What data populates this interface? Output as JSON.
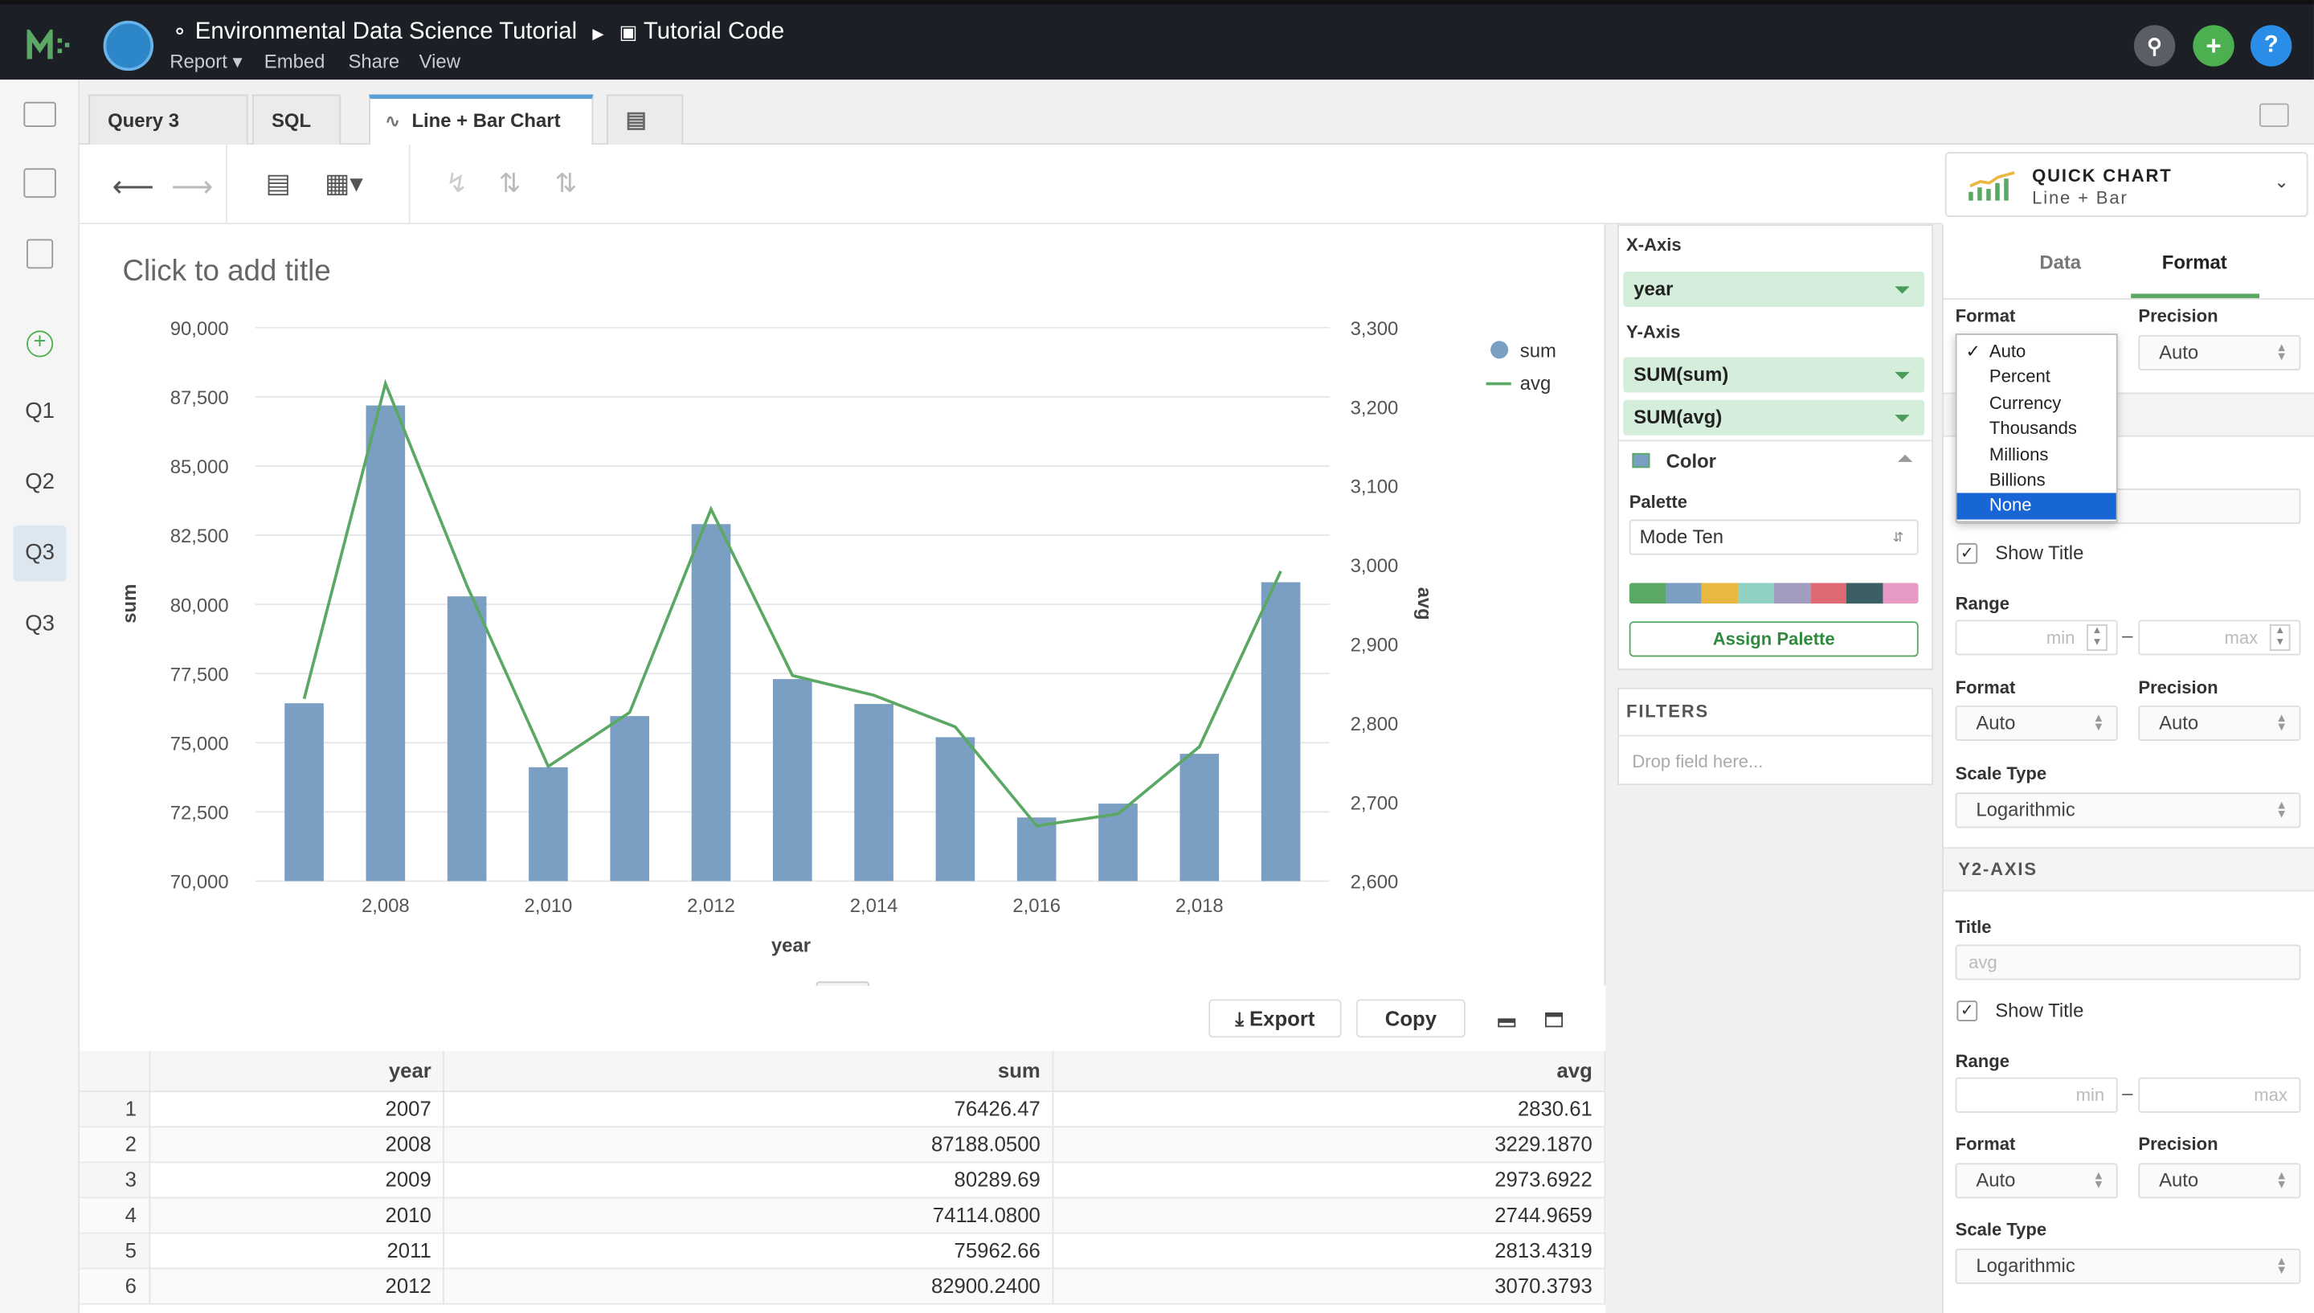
{
  "header": {
    "report_name": "Environmental Data Science Tutorial",
    "report_sub": "Tutorial Code",
    "menu": [
      "Report ▾",
      "Embed",
      "Share",
      "View"
    ]
  },
  "rail": {
    "items": [
      "Q1",
      "Q2",
      "Q3",
      "Q3"
    ]
  },
  "tabs": {
    "query": "Query 3",
    "sql": "SQL",
    "chart": "Line + Bar Chart"
  },
  "quick_chart": {
    "title": "QUICK CHART",
    "subtitle": "Line + Bar"
  },
  "chart_title_placeholder": "Click to add title",
  "chart_data": {
    "type": "bar+line",
    "x": [
      2007,
      2008,
      2009,
      2010,
      2011,
      2012,
      2013,
      2014,
      2015,
      2016,
      2017,
      2018,
      2019
    ],
    "x_tick_labels": [
      "2,008",
      "2,010",
      "2,012",
      "2,014",
      "2,016",
      "2,018"
    ],
    "x_tick_values": [
      2008,
      2010,
      2012,
      2014,
      2016,
      2018
    ],
    "xlabel": "year",
    "ylabel": "sum",
    "y2label": "avg",
    "ylim": [
      70000,
      90000
    ],
    "y2lim": [
      2600,
      3300
    ],
    "y_ticks": [
      "90,000",
      "87,500",
      "85,000",
      "82,500",
      "80,000",
      "77,500",
      "75,000",
      "72,500",
      "70,000"
    ],
    "y2_ticks": [
      "3,300",
      "3,200",
      "3,100",
      "3,000",
      "2,900",
      "2,800",
      "2,700",
      "2,600"
    ],
    "series": [
      {
        "name": "sum",
        "type": "bar",
        "color": "#7a9fc2",
        "values": [
          76426.47,
          87188.05,
          80289.69,
          74114.08,
          75962.66,
          82900.24,
          77300,
          76400,
          75200,
          72300,
          72800,
          74600,
          80800
        ]
      },
      {
        "name": "avg",
        "type": "line",
        "color": "#5aa864",
        "values": [
          2830.61,
          3229.187,
          2973.6922,
          2744.9659,
          2813.4319,
          3070.3793,
          2860,
          2835,
          2795,
          2670,
          2685,
          2770,
          2992
        ]
      }
    ],
    "legend": "top-right"
  },
  "config": {
    "x_axis_label": "X-Axis",
    "x_field": "year",
    "y_axis_label": "Y-Axis",
    "y_fields": [
      "SUM(sum)",
      "SUM(avg)"
    ],
    "color_label": "Color",
    "palette_label": "Palette",
    "palette_value": "Mode Ten",
    "palette_colors": [
      "#5aa864",
      "#7a9fc2",
      "#e9b841",
      "#8fd1c3",
      "#a39cc1",
      "#e06a73",
      "#3b5f64",
      "#e79bc4"
    ],
    "assign_palette": "Assign Palette",
    "filters_label": "FILTERS",
    "filters_placeholder": "Drop field here..."
  },
  "format_panel": {
    "tabs": [
      "Data",
      "Format"
    ],
    "format_label": "Format",
    "precision_label": "Precision",
    "precision_value": "Auto",
    "dropdown_options": [
      "Auto",
      "Percent",
      "Currency",
      "Thousands",
      "Millions",
      "Billions",
      "None"
    ],
    "dropdown_checked": "Auto",
    "dropdown_highlight": "None",
    "show_title": "Show Title",
    "range_label": "Range",
    "min_ph": "min",
    "max_ph": "max",
    "format_value": "Auto",
    "scale_label": "Scale Type",
    "scale_value": "Logarithmic",
    "y2_header": "Y2-AXIS",
    "title_label": "Title",
    "y2_title_ph": "avg"
  },
  "results": {
    "export": "Export",
    "copy": "Copy",
    "columns": [
      "year",
      "sum",
      "avg"
    ],
    "rows": [
      [
        "1",
        "2007",
        "76426.47",
        "2830.61"
      ],
      [
        "2",
        "2008",
        "87188.0500",
        "3229.1870"
      ],
      [
        "3",
        "2009",
        "80289.69",
        "2973.6922"
      ],
      [
        "4",
        "2010",
        "74114.0800",
        "2744.9659"
      ],
      [
        "5",
        "2011",
        "75962.66",
        "2813.4319"
      ],
      [
        "6",
        "2012",
        "82900.2400",
        "3070.3793"
      ]
    ]
  }
}
